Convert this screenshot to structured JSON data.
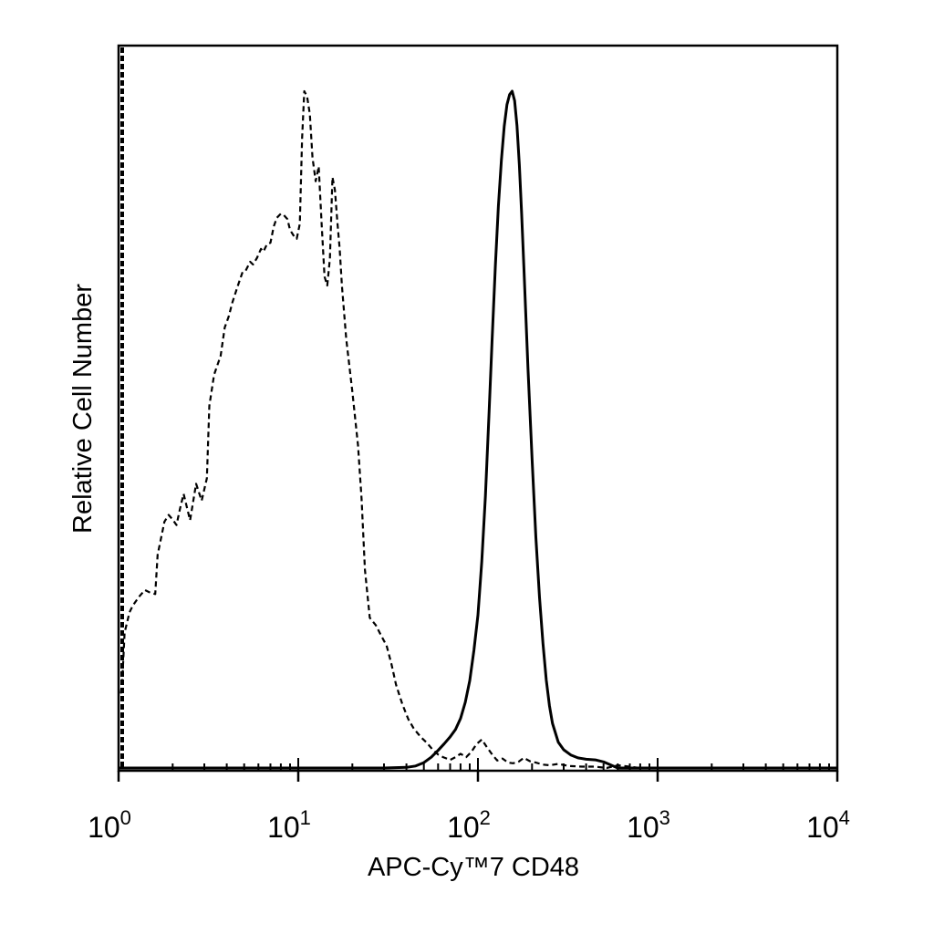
{
  "chart_data": {
    "type": "line",
    "title": "",
    "xlabel": "APC-Cy™7 CD48",
    "ylabel": "Relative Cell Number",
    "x_scale": "log",
    "xlim": [
      1,
      10000
    ],
    "ylim": [
      0,
      100
    ],
    "grid": false,
    "legend": "none",
    "x_ticks": [
      {
        "value": 1,
        "base": "10",
        "exp": "0"
      },
      {
        "value": 10,
        "base": "10",
        "exp": "1"
      },
      {
        "value": 100,
        "base": "10",
        "exp": "2"
      },
      {
        "value": 1000,
        "base": "10",
        "exp": "3"
      },
      {
        "value": 10000,
        "base": "10",
        "exp": "4"
      }
    ],
    "series": [
      {
        "style": "dashed",
        "color": "#000000",
        "x": [
          1.03,
          1.05,
          1.08,
          1.15,
          1.2,
          1.3,
          1.4,
          1.5,
          1.6,
          1.65,
          1.8,
          1.9,
          2.0,
          2.1,
          2.2,
          2.3,
          2.5,
          2.7,
          2.9,
          3.1,
          3.2,
          3.4,
          3.7,
          3.9,
          4.1,
          4.3,
          4.6,
          4.9,
          5.1,
          5.4,
          5.6,
          5.9,
          6.2,
          6.4,
          6.7,
          7.0,
          7.3,
          7.6,
          8.0,
          8.3,
          8.7,
          9.0,
          9.4,
          9.8,
          10.2,
          10.5,
          10.8,
          11.2,
          11.6,
          12.0,
          12.5,
          13.0,
          13.5,
          14.0,
          14.5,
          15.0,
          15.5,
          16.0,
          16.5,
          17.0,
          17.5,
          18.5,
          20.0,
          21.5,
          22.5,
          23.5,
          25.0,
          27.0,
          29.0,
          31.0,
          33.0,
          35.0,
          38.0,
          41.0,
          44.0,
          48.0,
          52.0,
          56.0,
          60.0,
          64.0,
          70.0,
          75.0,
          80.0,
          86.0,
          92.0,
          98.0,
          105.0,
          112.0,
          120.0,
          128.0,
          137.0,
          147.0,
          157.0,
          168.0,
          180.0,
          195.0,
          210.0,
          230.0,
          250.0,
          280.0,
          320.0,
          380.0,
          450.0,
          520.0,
          600.0,
          800.0,
          1000.0,
          3000.0,
          10000.0
        ],
        "y": [
          11.0,
          13.3,
          20.0,
          23.0,
          24.0,
          25.3,
          26.3,
          25.9,
          25.7,
          31.5,
          36.4,
          37.4,
          36.7,
          35.9,
          38.4,
          40.5,
          36.6,
          42.0,
          39.5,
          42.8,
          53.5,
          58.1,
          60.9,
          65.1,
          66.7,
          68.8,
          71.2,
          73.3,
          73.5,
          74.8,
          74.4,
          75.4,
          76.7,
          76.3,
          77.4,
          77.6,
          80.0,
          81.3,
          81.9,
          81.7,
          81.1,
          79.5,
          78.7,
          78.2,
          80.4,
          93.0,
          100.0,
          99.2,
          96.6,
          90.2,
          86.7,
          88.9,
          80.2,
          72.6,
          71.3,
          75.3,
          87.3,
          85.4,
          80.8,
          76.7,
          71.2,
          63.4,
          55.6,
          47.7,
          39.8,
          29.3,
          22.2,
          21.1,
          19.5,
          18.1,
          15.4,
          12.3,
          9.4,
          7.2,
          5.8,
          4.6,
          3.7,
          2.7,
          2.0,
          1.6,
          1.2,
          1.6,
          2.1,
          1.6,
          2.4,
          3.5,
          4.2,
          3.1,
          2.0,
          1.1,
          1.4,
          0.8,
          0.7,
          0.9,
          1.5,
          1.0,
          0.8,
          0.5,
          0.4,
          0.6,
          0.3,
          0.2,
          0.2,
          0.0,
          0.4,
          0.0,
          0.0,
          0.0,
          0.0
        ]
      },
      {
        "style": "solid",
        "color": "#000000",
        "x": [
          1.0,
          10.0,
          30.0,
          40.0,
          45.0,
          50.0,
          55.0,
          60.0,
          65.0,
          70.0,
          75.0,
          80.0,
          85.0,
          90.0,
          95.0,
          100.0,
          105.0,
          110.0,
          115.0,
          120.0,
          125.0,
          130.0,
          135.0,
          140.0,
          145.0,
          150.0,
          155.0,
          160.0,
          165.0,
          170.0,
          175.0,
          180.0,
          190.0,
          200.0,
          210.0,
          220.0,
          230.0,
          240.0,
          250.0,
          260.0,
          280.0,
          300.0,
          330.0,
          360.0,
          400.0,
          450.0,
          500.0,
          600.0,
          1000.0,
          10000.0
        ],
        "y": [
          0.0,
          0.0,
          0.0,
          0.1,
          0.3,
          0.8,
          1.6,
          2.6,
          3.6,
          4.6,
          5.7,
          7.3,
          9.7,
          12.9,
          17.4,
          22.6,
          30.5,
          40.2,
          51.9,
          63.5,
          74.2,
          83.0,
          89.8,
          94.8,
          98.0,
          99.5,
          100.0,
          98.6,
          94.9,
          89.1,
          81.9,
          74.2,
          58.9,
          45.8,
          34.1,
          25.2,
          18.4,
          13.0,
          9.2,
          6.6,
          3.8,
          2.7,
          1.9,
          1.5,
          1.3,
          1.2,
          0.9,
          0.0,
          0.0,
          0.0
        ]
      }
    ]
  }
}
